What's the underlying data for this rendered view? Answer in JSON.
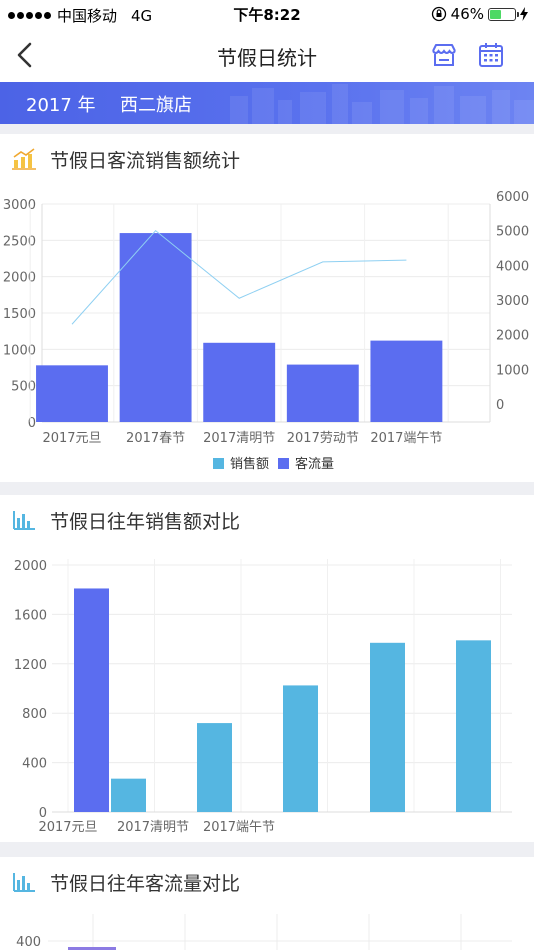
{
  "status_bar": {
    "carrier": "中国移动",
    "network": "4G",
    "time": "下午8:22",
    "battery": "46%",
    "battery_level": 0.46
  },
  "nav": {
    "title": "节假日统计"
  },
  "banner": {
    "year": "2017 年",
    "store": "西二旗店"
  },
  "section1": {
    "title": "节假日客流销售额统计"
  },
  "section2": {
    "title": "节假日往年销售额对比"
  },
  "section3": {
    "title": "节假日往年客流量对比"
  },
  "colors": {
    "accent": "#5b6df0",
    "sales": "#55b6e1",
    "line": "#8fd0f2"
  },
  "chart_data": [
    {
      "type": "bar",
      "categories": [
        "2017元旦",
        "2017春节",
        "2017清明节",
        "2017劳动节",
        "2017端午节"
      ],
      "series": [
        {
          "name": "销售额",
          "type": "line",
          "axis": "right",
          "values": [
            2300,
            5000,
            3050,
            4100,
            4150
          ]
        },
        {
          "name": "客流量",
          "type": "bar",
          "axis": "left",
          "values": [
            780,
            2600,
            1090,
            790,
            1120
          ]
        }
      ],
      "ylim_left": [
        0,
        3000
      ],
      "yticks_left": [
        "0",
        "500",
        "1000",
        "1500",
        "2000",
        "2500",
        "3000"
      ],
      "ylim_right": [
        0,
        6000
      ],
      "yticks_right": [
        "0",
        "1000",
        "2000",
        "3000",
        "4000",
        "5000",
        "6000"
      ],
      "legend": [
        "销售额",
        "客流量"
      ],
      "legend_position": "bottom"
    },
    {
      "type": "bar",
      "x_labels": [
        "2017元旦",
        "2017清明节",
        "2017端午节"
      ],
      "bars": [
        {
          "value": 1810,
          "series": "accent"
        },
        {
          "value": 270,
          "series": "sales"
        },
        {
          "value": 720,
          "series": "sales"
        },
        {
          "value": 1025,
          "series": "sales"
        },
        {
          "value": 1370,
          "series": "sales"
        },
        {
          "value": 1390,
          "series": "sales"
        }
      ],
      "ylim": [
        0,
        2000
      ],
      "yticks": [
        "0",
        "400",
        "800",
        "1200",
        "1600",
        "2000"
      ]
    },
    {
      "type": "bar",
      "yticks_visible": [
        "400"
      ]
    }
  ]
}
